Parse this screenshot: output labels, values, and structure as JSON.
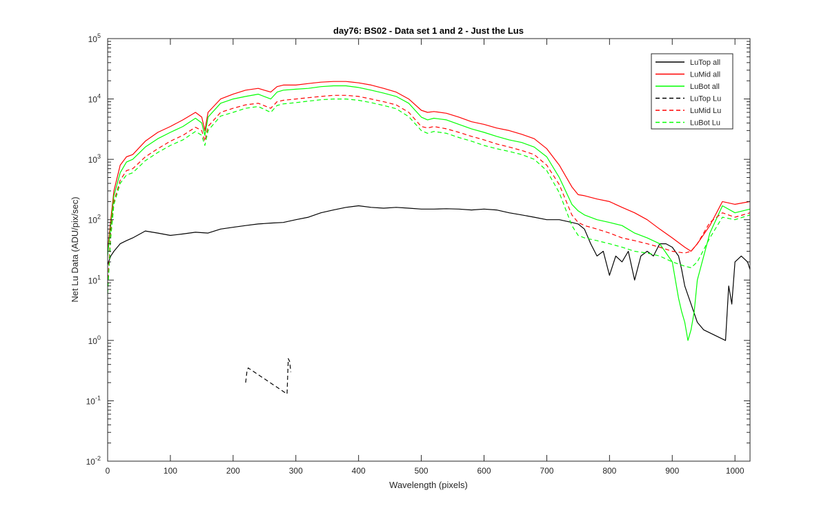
{
  "chart_data": {
    "type": "line",
    "title": "day76: BS02 - Data set 1 and 2 - Just the Lus",
    "xlabel": "Wavelength (pixels)",
    "ylabel": "Net Lu Data (ADU/pix/sec)",
    "xlim": [
      0,
      1024
    ],
    "ylim": [
      0.01,
      100000
    ],
    "yscale": "log",
    "grid": false,
    "legend_position": "top-right",
    "x_ticks": [
      0,
      100,
      200,
      300,
      400,
      500,
      600,
      700,
      800,
      900,
      1000
    ],
    "x_tick_labels": [
      "0",
      "100",
      "200",
      "300",
      "400",
      "500",
      "600",
      "700",
      "800",
      "900",
      "1000"
    ],
    "y_ticks": [
      0.01,
      0.1,
      1,
      10,
      100,
      1000,
      10000,
      100000
    ],
    "y_tick_labels": [
      {
        "base": "10",
        "exp": "-2"
      },
      {
        "base": "10",
        "exp": "-1"
      },
      {
        "base": "10",
        "exp": "0"
      },
      {
        "base": "10",
        "exp": "1"
      },
      {
        "base": "10",
        "exp": "2"
      },
      {
        "base": "10",
        "exp": "3"
      },
      {
        "base": "10",
        "exp": "4"
      },
      {
        "base": "10",
        "exp": "5"
      }
    ],
    "series": [
      {
        "name": "LuTop  all",
        "color": "#000000",
        "dash": "solid",
        "x": [
          0,
          5,
          10,
          20,
          30,
          40,
          60,
          80,
          100,
          120,
          140,
          160,
          180,
          200,
          220,
          240,
          260,
          280,
          300,
          320,
          340,
          360,
          380,
          400,
          420,
          440,
          460,
          480,
          500,
          520,
          540,
          560,
          580,
          600,
          620,
          640,
          660,
          680,
          700,
          720,
          740,
          750,
          760,
          770,
          780,
          790,
          800,
          810,
          820,
          830,
          840,
          850,
          860,
          870,
          880,
          890,
          900,
          910,
          915,
          920,
          930,
          940,
          950,
          985,
          990,
          995,
          1000,
          1010,
          1020,
          1024
        ],
        "y": [
          18,
          25,
          30,
          40,
          45,
          50,
          65,
          60,
          55,
          58,
          62,
          60,
          70,
          75,
          80,
          85,
          88,
          90,
          100,
          110,
          130,
          145,
          160,
          170,
          160,
          155,
          160,
          155,
          150,
          150,
          152,
          150,
          145,
          150,
          145,
          130,
          120,
          110,
          100,
          100,
          90,
          85,
          70,
          40,
          25,
          30,
          12,
          25,
          20,
          30,
          10,
          25,
          30,
          25,
          40,
          40,
          35,
          25,
          15,
          8,
          4,
          2,
          1.5,
          1,
          8,
          4,
          20,
          25,
          20,
          15
        ]
      },
      {
        "name": "LuMid  all",
        "color": "#ff0000",
        "dash": "solid",
        "x": [
          0,
          5,
          10,
          20,
          30,
          40,
          60,
          80,
          100,
          120,
          140,
          150,
          155,
          160,
          180,
          200,
          220,
          240,
          260,
          270,
          280,
          300,
          320,
          340,
          360,
          380,
          400,
          420,
          440,
          460,
          480,
          500,
          510,
          520,
          540,
          560,
          580,
          600,
          620,
          640,
          660,
          680,
          700,
          720,
          740,
          750,
          760,
          780,
          800,
          820,
          840,
          860,
          880,
          900,
          920,
          930,
          940,
          960,
          980,
          1000,
          1024
        ],
        "y": [
          30,
          100,
          300,
          800,
          1100,
          1200,
          2000,
          2800,
          3500,
          4500,
          6000,
          5000,
          3000,
          6000,
          10000,
          12000,
          14000,
          15000,
          13000,
          16000,
          17000,
          17000,
          18000,
          19000,
          19500,
          19500,
          18500,
          17000,
          15000,
          13000,
          10000,
          6500,
          6000,
          6200,
          5800,
          5000,
          4200,
          3800,
          3300,
          3000,
          2600,
          2200,
          1500,
          800,
          350,
          260,
          250,
          220,
          200,
          160,
          130,
          100,
          70,
          50,
          35,
          30,
          40,
          80,
          200,
          180,
          200
        ]
      },
      {
        "name": "LuBot  all",
        "color": "#00ff00",
        "dash": "solid",
        "x": [
          0,
          5,
          10,
          20,
          30,
          40,
          60,
          80,
          100,
          120,
          140,
          150,
          155,
          160,
          180,
          200,
          220,
          240,
          260,
          270,
          280,
          300,
          320,
          340,
          360,
          380,
          400,
          420,
          440,
          460,
          480,
          500,
          510,
          520,
          540,
          560,
          580,
          600,
          620,
          640,
          660,
          680,
          700,
          720,
          740,
          750,
          760,
          780,
          800,
          820,
          840,
          860,
          880,
          900,
          910,
          915,
          920,
          925,
          930,
          935,
          940,
          960,
          980,
          1000,
          1024
        ],
        "y": [
          25,
          80,
          250,
          600,
          900,
          1000,
          1600,
          2200,
          2800,
          3500,
          4800,
          4000,
          2500,
          5000,
          8500,
          10000,
          11000,
          12000,
          10000,
          13000,
          14000,
          14500,
          15000,
          16000,
          16500,
          16500,
          15500,
          14000,
          12500,
          11000,
          8500,
          5000,
          4500,
          4800,
          4500,
          3800,
          3200,
          2800,
          2400,
          2100,
          1900,
          1600,
          1100,
          500,
          180,
          140,
          120,
          100,
          90,
          80,
          60,
          50,
          40,
          20,
          5,
          3,
          2,
          1,
          1.5,
          3,
          10,
          60,
          170,
          130,
          150
        ]
      },
      {
        "name": "LuTop  Lu",
        "color": "#000000",
        "dash": "dashed",
        "x": [
          220,
          222,
          224,
          286,
          288,
          290,
          292
        ],
        "y": [
          0.2,
          0.3,
          0.35,
          0.13,
          0.5,
          0.45,
          0.3
        ]
      },
      {
        "name": "LuMid  Lu",
        "color": "#ff0000",
        "dash": "dashed",
        "x": [
          0,
          5,
          10,
          20,
          30,
          40,
          60,
          80,
          100,
          120,
          140,
          150,
          155,
          160,
          180,
          200,
          220,
          240,
          260,
          270,
          280,
          300,
          320,
          340,
          360,
          380,
          400,
          420,
          440,
          460,
          480,
          500,
          510,
          520,
          540,
          560,
          580,
          600,
          620,
          640,
          660,
          680,
          700,
          720,
          740,
          750,
          760,
          780,
          800,
          820,
          840,
          860,
          880,
          900,
          920,
          930,
          940,
          960,
          980,
          1000,
          1024
        ],
        "y": [
          8,
          60,
          200,
          450,
          650,
          700,
          1100,
          1500,
          2000,
          2500,
          3400,
          3000,
          2000,
          3500,
          6000,
          7000,
          8000,
          8500,
          7000,
          9000,
          9500,
          10000,
          10500,
          11000,
          11500,
          11500,
          11000,
          10000,
          9000,
          8000,
          6000,
          3500,
          3300,
          3500,
          3200,
          2800,
          2400,
          2100,
          1800,
          1600,
          1400,
          1200,
          800,
          380,
          120,
          90,
          80,
          70,
          60,
          50,
          45,
          40,
          35,
          30,
          28,
          30,
          40,
          90,
          130,
          110,
          130
        ]
      },
      {
        "name": "LuBot  Lu",
        "color": "#00ff00",
        "dash": "dashed",
        "x": [
          0,
          5,
          10,
          20,
          30,
          40,
          60,
          80,
          100,
          120,
          140,
          150,
          155,
          160,
          180,
          200,
          220,
          240,
          260,
          270,
          280,
          300,
          320,
          340,
          360,
          380,
          400,
          420,
          440,
          460,
          480,
          500,
          510,
          520,
          540,
          560,
          580,
          600,
          620,
          640,
          660,
          680,
          700,
          720,
          740,
          750,
          760,
          780,
          800,
          820,
          840,
          860,
          880,
          900,
          920,
          930,
          940,
          960,
          980,
          1000,
          1024
        ],
        "y": [
          6,
          50,
          180,
          400,
          550,
          600,
          950,
          1300,
          1700,
          2100,
          2900,
          2500,
          1700,
          3000,
          5200,
          6000,
          7000,
          7500,
          6000,
          7800,
          8300,
          8700,
          9200,
          9700,
          10000,
          10000,
          9500,
          8700,
          7800,
          6900,
          5100,
          3000,
          2700,
          2900,
          2700,
          2300,
          2000,
          1700,
          1500,
          1350,
          1200,
          1000,
          650,
          280,
          80,
          55,
          50,
          45,
          40,
          35,
          30,
          28,
          25,
          20,
          17,
          16,
          20,
          50,
          110,
          100,
          120
        ]
      }
    ]
  }
}
